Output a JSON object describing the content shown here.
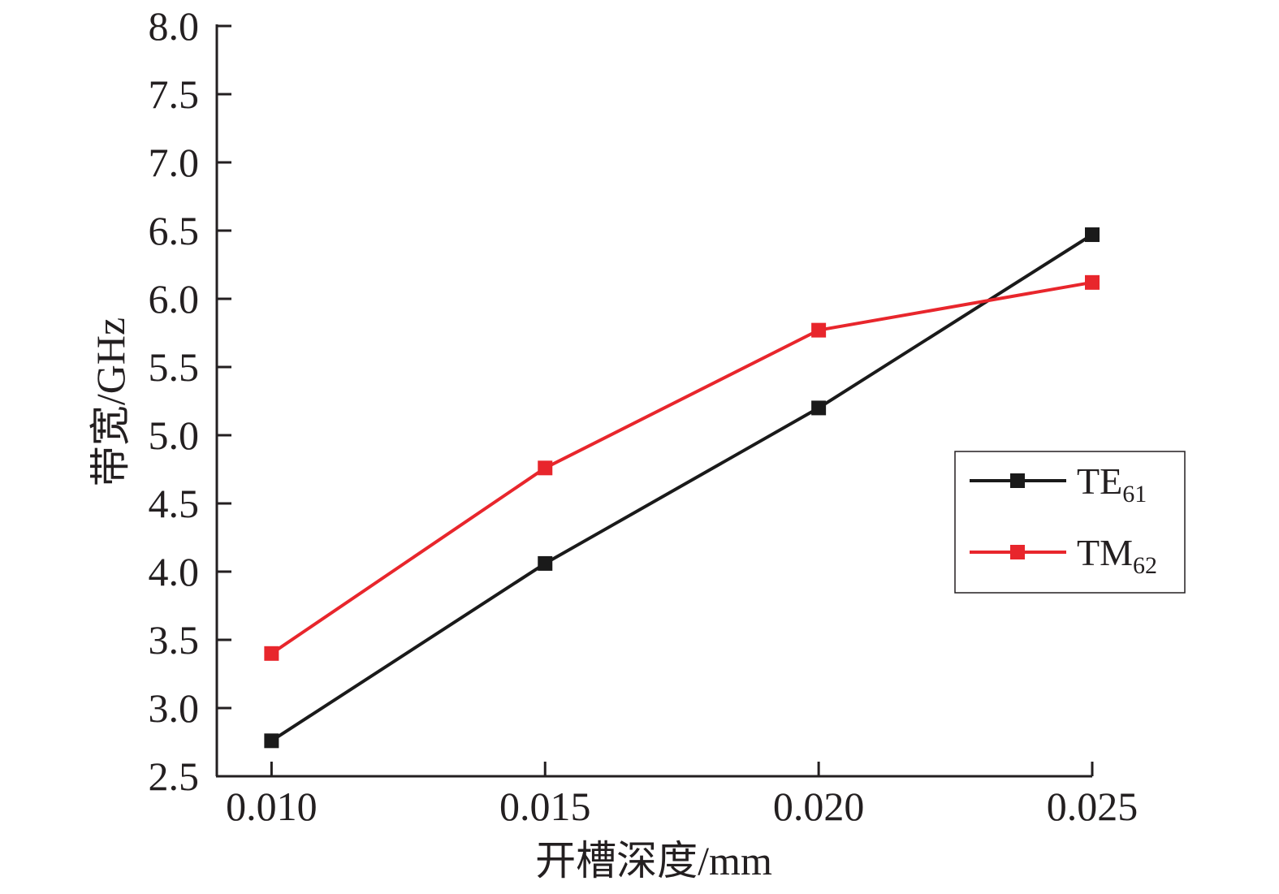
{
  "chart_data": {
    "type": "line",
    "xlabel": "开槽深度/mm",
    "ylabel": "带宽/GHz",
    "x": [
      0.01,
      0.015,
      0.02,
      0.025
    ],
    "x_tick_labels": [
      "0.010",
      "0.015",
      "0.020",
      "0.025"
    ],
    "xlim": [
      0.009,
      0.025
    ],
    "ylim": [
      2.5,
      8.0
    ],
    "y_ticks": [
      2.5,
      3.0,
      3.5,
      4.0,
      4.5,
      5.0,
      5.5,
      6.0,
      6.5,
      7.0,
      7.5,
      8.0
    ],
    "y_tick_labels": [
      "2.5",
      "3.0",
      "3.5",
      "4.0",
      "4.5",
      "5.0",
      "5.5",
      "6.0",
      "6.5",
      "7.0",
      "7.5",
      "8.0"
    ],
    "grid": false,
    "legend_position": "right",
    "series": [
      {
        "name": "TE",
        "subscript": "61",
        "color": "#1a1a1a",
        "marker": "square",
        "values": [
          2.76,
          4.06,
          5.2,
          6.47
        ]
      },
      {
        "name": "TM",
        "subscript": "62",
        "color": "#e8262c",
        "marker": "square",
        "values": [
          3.4,
          4.76,
          5.77,
          6.12
        ]
      }
    ]
  }
}
